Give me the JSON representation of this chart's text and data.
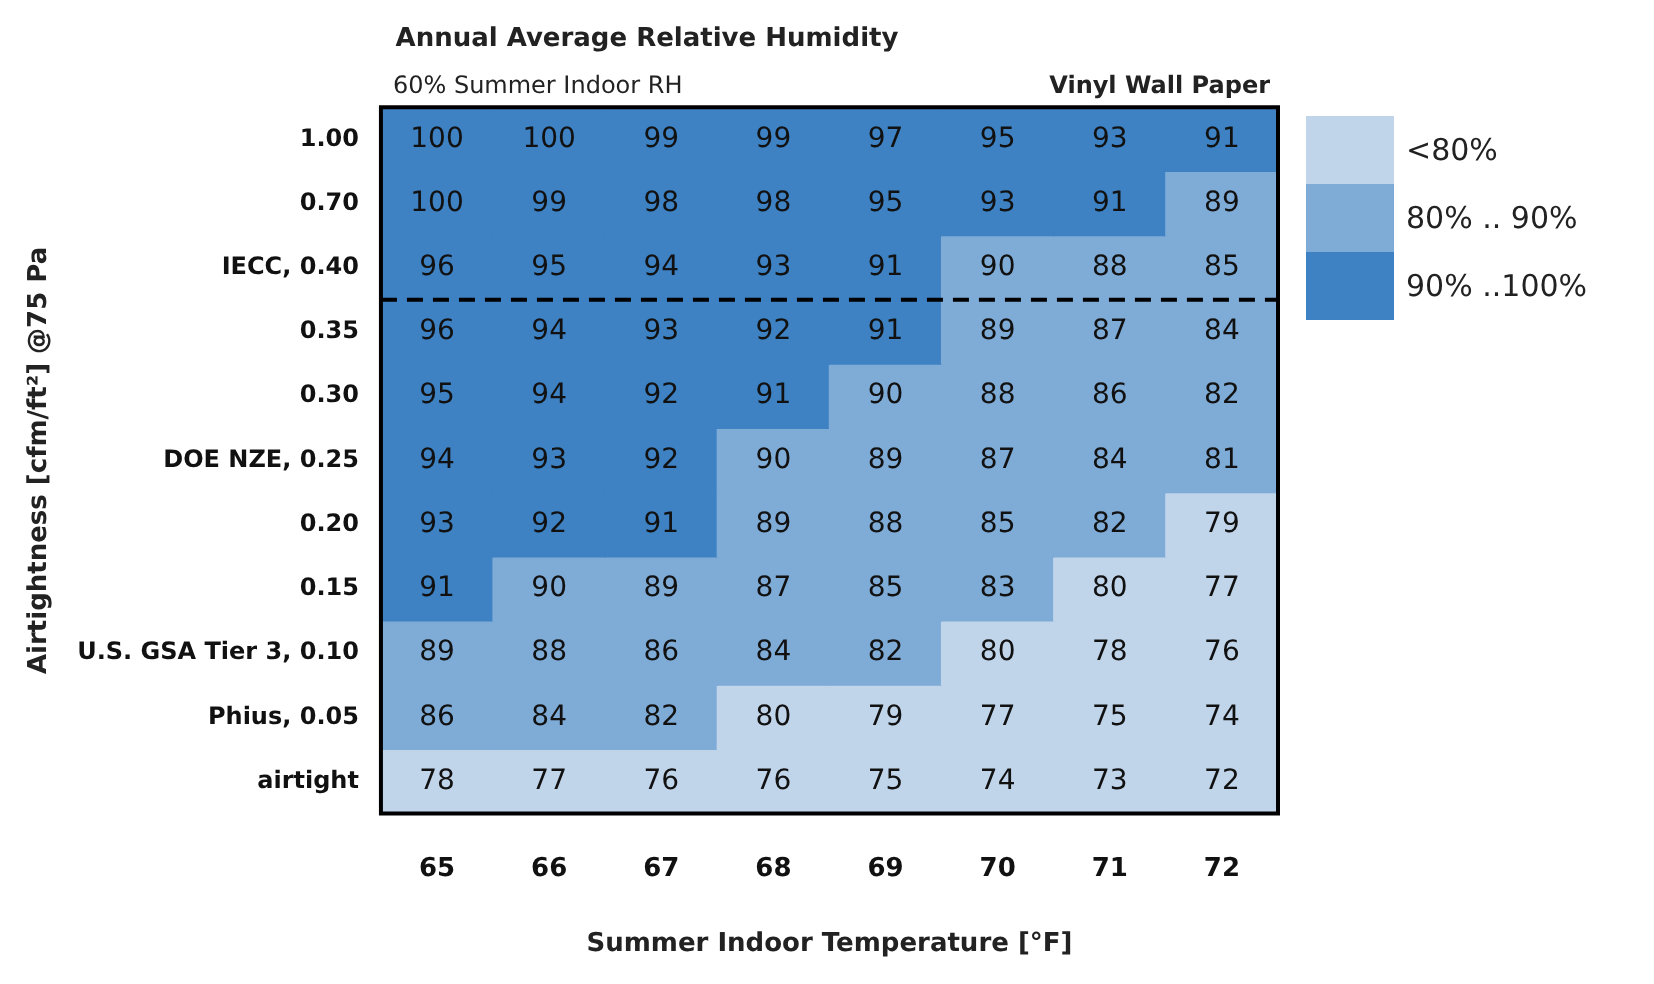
{
  "chart_data": {
    "type": "heatmap",
    "title": "Annual Average Relative Humidity",
    "xlabel": "Summer Indoor Temperature [°F]",
    "ylabel": "Airtightness [cfm/ft²] @75 Pa",
    "annotations": [
      "60% Summer Indoor RH",
      "Vinyl Wall Paper"
    ],
    "categories": [
      "65",
      "66",
      "67",
      "68",
      "69",
      "70",
      "71",
      "72"
    ],
    "y_categories": [
      "1.00",
      "0.70",
      "IECC, 0.40",
      "0.35",
      "0.30",
      "DOE NZE, 0.25",
      "0.20",
      "0.15",
      "U.S. GSA Tier 3, 0.10",
      "Phius, 0.05",
      "airtight"
    ],
    "cells": [
      [
        100,
        100,
        99,
        99,
        97,
        95,
        93,
        91
      ],
      [
        100,
        99,
        98,
        98,
        95,
        93,
        91,
        89
      ],
      [
        96,
        95,
        94,
        93,
        91,
        90,
        88,
        85
      ],
      [
        96,
        94,
        93,
        92,
        91,
        89,
        87,
        84
      ],
      [
        95,
        94,
        92,
        91,
        90,
        88,
        86,
        82
      ],
      [
        94,
        93,
        92,
        90,
        89,
        87,
        84,
        81
      ],
      [
        93,
        92,
        91,
        89,
        88,
        85,
        82,
        79
      ],
      [
        91,
        90,
        89,
        87,
        85,
        83,
        80,
        77
      ],
      [
        89,
        88,
        86,
        84,
        82,
        80,
        78,
        76
      ],
      [
        86,
        84,
        82,
        80,
        79,
        77,
        75,
        74
      ],
      [
        78,
        77,
        76,
        76,
        75,
        74,
        73,
        72
      ]
    ],
    "clim": [
      70,
      100
    ],
    "cticks": [
      {
        "value": 75,
        "label": "<80%"
      },
      {
        "value": 85,
        "label": "80% .. 90%"
      },
      {
        "value": 95,
        "label": "90% ..100%"
      }
    ],
    "ref_lines": [
      {
        "axis": "y",
        "value": "IECC, 0.40",
        "line_style": "dashed",
        "color": "#000000"
      }
    ],
    "data_labels": true
  }
}
